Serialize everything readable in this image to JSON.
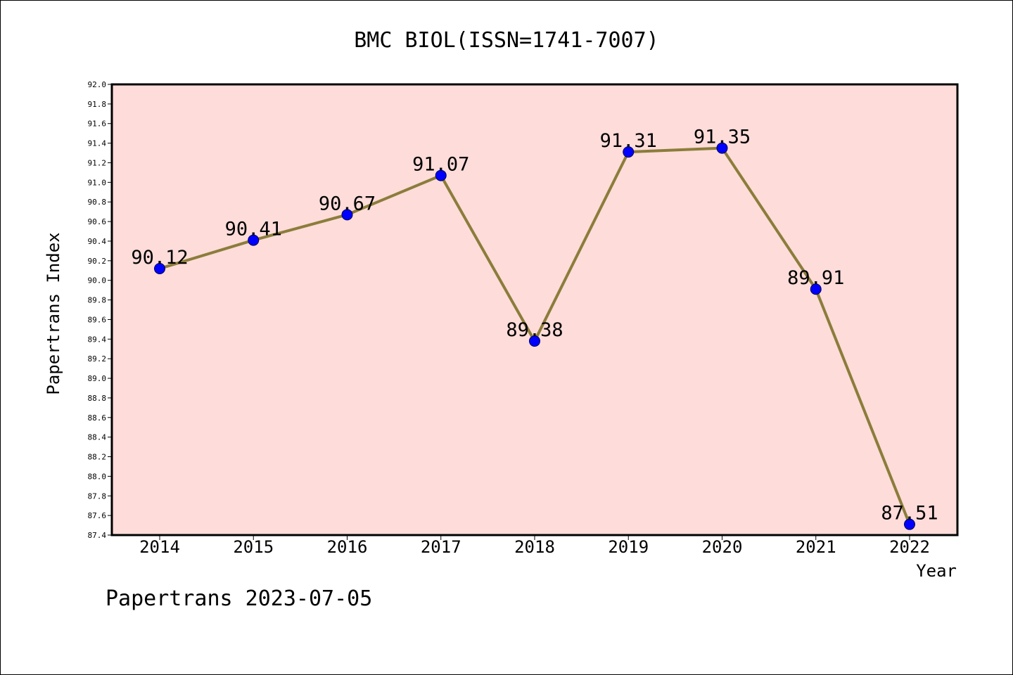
{
  "footer": "Papertrans 2023-07-05",
  "chart_data": {
    "type": "line",
    "title": "BMC BIOL(ISSN=1741-7007)",
    "xlabel": "Year",
    "ylabel": "Papertrans Index",
    "x": [
      "2014",
      "2015",
      "2016",
      "2017",
      "2018",
      "2019",
      "2020",
      "2021",
      "2022"
    ],
    "series": [
      {
        "values": [
          90.12,
          90.41,
          90.67,
          91.07,
          89.38,
          91.31,
          91.35,
          89.91,
          87.51
        ],
        "labels": [
          "90.12",
          "90.41",
          "90.67",
          "91.07",
          "89.38",
          "91.31",
          "91.35",
          "89.91",
          "87.51"
        ],
        "line_color": "#8B7D3A",
        "marker_color": "#0000FF"
      }
    ],
    "ylim": [
      87.4,
      92.0
    ],
    "yticks": [
      "87.4",
      "87.6",
      "87.8",
      "88.0",
      "88.2",
      "88.4",
      "88.6",
      "88.8",
      "89.0",
      "89.2",
      "89.4",
      "89.6",
      "89.8",
      "90.0",
      "90.2",
      "90.4",
      "90.6",
      "90.8",
      "91.0",
      "91.2",
      "91.4",
      "91.6",
      "91.8",
      "92.0"
    ],
    "plot_background": "#FDDCDA",
    "grid": false
  }
}
